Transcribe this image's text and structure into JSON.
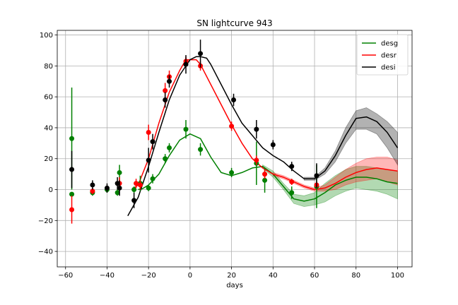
{
  "chart_data": {
    "type": "line",
    "title": "SN lightcurve 943",
    "xlabel": "days",
    "ylabel": "",
    "xlim": [
      -64,
      107
    ],
    "ylim": [
      -50,
      103
    ],
    "xticks": [
      -60,
      -40,
      -20,
      0,
      20,
      40,
      60,
      80,
      100
    ],
    "yticks": [
      -40,
      -20,
      0,
      20,
      40,
      60,
      80,
      100
    ],
    "grid": true,
    "legend_position": "top-right",
    "series": [
      {
        "name": "desg",
        "color": "#008000",
        "fill": "rgba(0,128,0,0.3)",
        "model_x": [
          -25,
          -23,
          -20,
          -15,
          -10,
          -5,
          0,
          5,
          10,
          15,
          20,
          25,
          30,
          35,
          40,
          45,
          50,
          55,
          60,
          65,
          70,
          75,
          80,
          85,
          90,
          95,
          100
        ],
        "model_y": [
          0,
          0.5,
          3,
          10,
          22,
          32,
          36,
          33,
          21,
          11,
          9,
          11,
          14,
          15,
          10,
          2,
          -6,
          -7.5,
          -6,
          -2,
          3,
          6,
          8,
          8,
          7,
          5,
          4
        ],
        "band_x": [
          35,
          40,
          45,
          50,
          55,
          60,
          65,
          70,
          75,
          80,
          85,
          90,
          95,
          100
        ],
        "band_upper": [
          16,
          12,
          4,
          -3,
          -4,
          -2,
          4,
          9,
          13,
          15,
          15,
          14,
          13,
          12
        ],
        "band_lower": [
          14,
          8,
          0,
          -9,
          -11,
          -10,
          -8,
          -4,
          -1,
          1,
          0,
          -1,
          -3,
          -6
        ],
        "points": [
          {
            "x": -57,
            "y": 33,
            "err": 33
          },
          {
            "x": -57,
            "y": -3,
            "err": 0
          },
          {
            "x": -47,
            "y": -2,
            "err": 2
          },
          {
            "x": -40,
            "y": 0,
            "err": 2
          },
          {
            "x": -35,
            "y": -2,
            "err": 2
          },
          {
            "x": -34,
            "y": 11,
            "err": 5
          },
          {
            "x": -27,
            "y": 0,
            "err": 2
          },
          {
            "x": -24,
            "y": 4,
            "err": 5
          },
          {
            "x": -20,
            "y": 1,
            "err": 2
          },
          {
            "x": -18,
            "y": 7,
            "err": 3
          },
          {
            "x": -12,
            "y": 20,
            "err": 3
          },
          {
            "x": -10,
            "y": 27,
            "err": 3
          },
          {
            "x": -2,
            "y": 39,
            "err": 6
          },
          {
            "x": 5,
            "y": 26,
            "err": 4
          },
          {
            "x": 20,
            "y": 11,
            "err": 3
          },
          {
            "x": 32,
            "y": 17,
            "err": 14
          },
          {
            "x": 36,
            "y": 6,
            "err": 8
          },
          {
            "x": 49,
            "y": -2,
            "err": 4
          },
          {
            "x": 61,
            "y": 2,
            "err": 14
          }
        ]
      },
      {
        "name": "desr",
        "color": "#ff0000",
        "fill": "rgba(255,0,0,0.28)",
        "model_x": [
          -28,
          -25,
          -20,
          -15,
          -10,
          -5,
          -2,
          0,
          3,
          5,
          10,
          15,
          20,
          25,
          30,
          35,
          40,
          45,
          50,
          55,
          60,
          65,
          70,
          75,
          80,
          85,
          90,
          95,
          100
        ],
        "model_y": [
          0,
          3,
          20,
          43,
          63,
          77,
          84,
          84,
          84,
          81,
          68,
          55,
          42,
          30,
          20,
          14,
          10,
          8,
          5,
          2,
          0,
          1,
          4,
          8,
          11,
          13,
          14,
          13,
          12
        ],
        "band_x": [
          40,
          45,
          50,
          55,
          60,
          65,
          70,
          75,
          80,
          85,
          90,
          95,
          100
        ],
        "band_upper": [
          11,
          9,
          6,
          3,
          1,
          3,
          8,
          13,
          17,
          20,
          21,
          21,
          19
        ],
        "band_lower": [
          9,
          7,
          4,
          1,
          -1,
          -1,
          0,
          3,
          5,
          6,
          7,
          5,
          3
        ],
        "points": [
          {
            "x": -57,
            "y": -13,
            "err": 9
          },
          {
            "x": -47,
            "y": -1,
            "err": 2
          },
          {
            "x": -34,
            "y": 4,
            "err": 4
          },
          {
            "x": -26,
            "y": 4,
            "err": 3
          },
          {
            "x": -24,
            "y": 3,
            "err": 3
          },
          {
            "x": -20,
            "y": 37,
            "err": 5
          },
          {
            "x": -12,
            "y": 64,
            "err": 5
          },
          {
            "x": -10,
            "y": 73,
            "err": 4
          },
          {
            "x": -2,
            "y": 83,
            "err": 3
          },
          {
            "x": 5,
            "y": 80,
            "err": 3
          },
          {
            "x": 20,
            "y": 41,
            "err": 3
          },
          {
            "x": 32,
            "y": 19,
            "err": 3
          },
          {
            "x": 36,
            "y": 10,
            "err": 3
          },
          {
            "x": 49,
            "y": 5,
            "err": 2
          },
          {
            "x": 61,
            "y": 3,
            "err": 2
          }
        ]
      },
      {
        "name": "desi",
        "color": "#000000",
        "fill": "rgba(0,0,0,0.3)",
        "model_x": [
          -30,
          -25,
          -20,
          -15,
          -10,
          -5,
          0,
          3,
          5,
          8,
          10,
          15,
          20,
          25,
          30,
          35,
          40,
          45,
          50,
          55,
          60,
          65,
          70,
          75,
          80,
          85,
          90,
          95,
          100
        ],
        "model_y": [
          -17,
          -5,
          15,
          37,
          58,
          74,
          84,
          86,
          86,
          85,
          81,
          68,
          55,
          43,
          35,
          27,
          22,
          18,
          12,
          7,
          7,
          12,
          22,
          35,
          46,
          47,
          44,
          37,
          27
        ],
        "band_x": [
          55,
          60,
          65,
          70,
          75,
          80,
          85,
          90,
          95,
          100
        ],
        "band_upper": [
          8,
          8,
          14,
          25,
          40,
          51,
          53,
          49,
          44,
          37
        ],
        "band_lower": [
          6,
          6,
          10,
          18,
          30,
          39,
          39,
          36,
          27,
          16
        ],
        "points": [
          {
            "x": -57,
            "y": 13,
            "err": 12
          },
          {
            "x": -47,
            "y": 3,
            "err": 3
          },
          {
            "x": -40,
            "y": 1,
            "err": 3
          },
          {
            "x": -35,
            "y": 4,
            "err": 4
          },
          {
            "x": -34,
            "y": 1,
            "err": 5
          },
          {
            "x": -27,
            "y": -7,
            "err": 5
          },
          {
            "x": -20,
            "y": 19,
            "err": 8
          },
          {
            "x": -18,
            "y": 31,
            "err": 5
          },
          {
            "x": -12,
            "y": 58,
            "err": 5
          },
          {
            "x": -10,
            "y": 70,
            "err": 4
          },
          {
            "x": -2,
            "y": 81,
            "err": 6
          },
          {
            "x": 5,
            "y": 88,
            "err": 9
          },
          {
            "x": 21,
            "y": 58,
            "err": 4
          },
          {
            "x": 32,
            "y": 39,
            "err": 6
          },
          {
            "x": 40,
            "y": 29,
            "err": 3
          },
          {
            "x": 49,
            "y": 15,
            "err": 3
          },
          {
            "x": 61,
            "y": 9,
            "err": 8
          }
        ]
      }
    ]
  }
}
